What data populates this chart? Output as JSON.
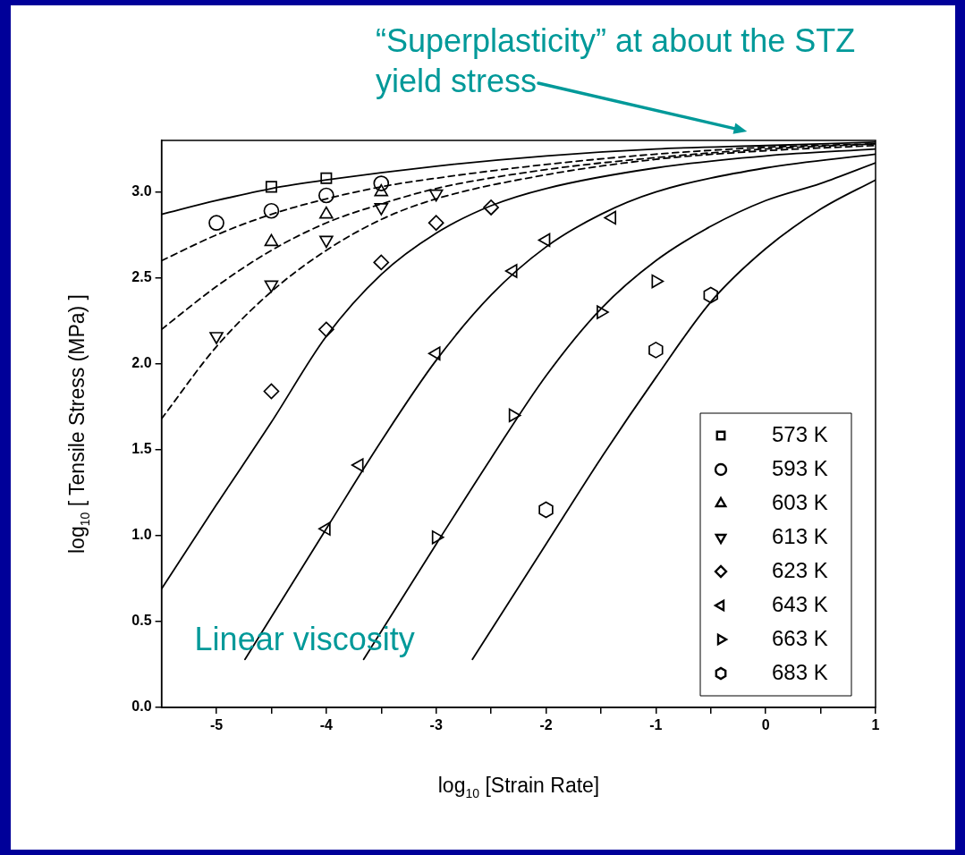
{
  "chart_data": {
    "type": "scatter",
    "xlabel": "log$_{10}$ [Strain Rate]",
    "ylabel": "log$_{10}$ [ Tensile Stress (MPa) ]",
    "xlim": [
      -5.5,
      1
    ],
    "xticks": [
      -5,
      {
        "value": -4.5,
        "label": null
      },
      -4,
      {
        "value": -3.5,
        "label": null
      },
      -3,
      {
        "value": -2.5,
        "label": null
      },
      -2,
      {
        "value": -1.5,
        "label": null
      },
      -1,
      {
        "value": -0.5,
        "label": null
      },
      0,
      {
        "value": 0.5,
        "label": null
      },
      1
    ],
    "ylim": [
      0,
      3.3
    ],
    "yticks": [
      {
        "value": 0,
        "label": "0.0"
      },
      0.5,
      {
        "value": 1,
        "label": "1.0"
      },
      1.5,
      {
        "value": 2,
        "label": "2.0"
      },
      2.5,
      {
        "value": 3,
        "label": "3.0"
      }
    ],
    "grid": false,
    "legend": "bottom right",
    "series": [
      {
        "name": "573 K",
        "marker": "square",
        "color": "#000000",
        "x": [
          -4.5,
          -4
        ],
        "values": [
          3.03,
          3.08
        ]
      },
      {
        "name": "593 K",
        "marker": "circle",
        "color": "#000000",
        "x": [
          -5,
          -4.5,
          -4,
          -3.5
        ],
        "values": [
          2.82,
          2.89,
          2.98,
          3.05
        ]
      },
      {
        "name": "603 K",
        "marker": "triangle",
        "color": "#000000",
        "x": [
          -4.5,
          -4,
          -3.5
        ],
        "values": [
          2.71,
          2.87,
          3.0
        ]
      },
      {
        "name": "613 K",
        "marker": "triangle-down",
        "color": "#000000",
        "x": [
          -5,
          -4.5,
          -4,
          -3.5,
          -3
        ],
        "values": [
          2.16,
          2.46,
          2.72,
          2.91,
          2.99
        ]
      },
      {
        "name": "623 K",
        "marker": "diamond",
        "color": "#000000",
        "x": [
          -4.5,
          -4,
          -3.5,
          -3,
          -2.5
        ],
        "values": [
          1.84,
          2.2,
          2.59,
          2.82,
          2.91
        ]
      },
      {
        "name": "643 K",
        "marker": "triangle-left",
        "color": "#000000",
        "x": [
          -4,
          -3.7,
          -3,
          -2.3,
          -2,
          -1.4
        ],
        "values": [
          1.04,
          1.41,
          2.06,
          2.54,
          2.72,
          2.85
        ]
      },
      {
        "name": "663 K",
        "marker": "triangle-right",
        "color": "#000000",
        "x": [
          -3,
          -2.3,
          -1.5,
          -1
        ],
        "values": [
          0.99,
          1.7,
          2.3,
          2.48
        ]
      },
      {
        "name": "683 K",
        "color": "#000000",
        "x": [
          -2,
          -1,
          -0.5
        ],
        "values": [
          1.15,
          2.08,
          2.4
        ]
      },
      {
        "type": "line",
        "line_style": "solid",
        "color": "#000000",
        "x": [
          -5.5,
          -5,
          -4.5,
          -4,
          -3,
          -2,
          -1,
          0,
          1
        ],
        "values": [
          2.87,
          2.95,
          3.02,
          3.07,
          3.15,
          3.21,
          3.25,
          3.27,
          3.29
        ]
      },
      {
        "type": "line",
        "line_style": "dashed",
        "color": "#000000",
        "x": [
          -5.5,
          -5,
          -4.5,
          -4,
          -3.5,
          -3,
          -2,
          -1,
          0,
          1
        ],
        "values": [
          2.6,
          2.75,
          2.87,
          2.96,
          3.03,
          3.08,
          3.16,
          3.22,
          3.26,
          3.28
        ]
      },
      {
        "type": "line",
        "line_style": "dashed",
        "color": "#000000",
        "x": [
          -5.5,
          -5,
          -4.5,
          -4,
          -3.5,
          -3,
          -2,
          -1,
          0,
          1
        ],
        "values": [
          2.2,
          2.45,
          2.66,
          2.82,
          2.93,
          3.02,
          3.13,
          3.2,
          3.25,
          3.28
        ]
      },
      {
        "type": "line",
        "line_style": "dashed",
        "color": "#000000",
        "x": [
          -5.5,
          -5,
          -4.5,
          -4,
          -3.5,
          -3,
          -2,
          -1,
          0,
          1
        ],
        "values": [
          1.68,
          2.1,
          2.42,
          2.66,
          2.84,
          2.96,
          3.1,
          3.19,
          3.24,
          3.27
        ]
      },
      {
        "type": "line",
        "line_style": "solid",
        "color": "#000000",
        "x": [
          -5.5,
          -5,
          -4.5,
          -4,
          -3.5,
          -3,
          -2.5,
          -2,
          -1,
          0,
          1
        ],
        "values": [
          0.69,
          1.18,
          1.66,
          2.16,
          2.52,
          2.76,
          2.92,
          3.02,
          3.14,
          3.21,
          3.25
        ]
      },
      {
        "type": "line",
        "line_style": "solid",
        "color": "#000000",
        "x": [
          -4.74,
          -4,
          -3.5,
          -3,
          -2.5,
          -2,
          -1.5,
          -1,
          0,
          1
        ],
        "values": [
          0.28,
          1.04,
          1.55,
          2.02,
          2.4,
          2.68,
          2.87,
          3.0,
          3.14,
          3.22
        ]
      },
      {
        "type": "line",
        "line_style": "solid",
        "color": "#000000",
        "x": [
          -3.66,
          -3,
          -2.5,
          -2,
          -1.5,
          -1,
          -0.5,
          0,
          0.5,
          1
        ],
        "values": [
          0.28,
          0.95,
          1.45,
          1.93,
          2.32,
          2.6,
          2.8,
          2.95,
          3.05,
          3.17
        ]
      },
      {
        "type": "line",
        "line_style": "solid",
        "color": "#000000",
        "x": [
          -2.67,
          -2,
          -1.5,
          -1,
          -0.5,
          0,
          0.5,
          1
        ],
        "values": [
          0.28,
          0.95,
          1.45,
          1.92,
          2.36,
          2.67,
          2.9,
          3.07
        ]
      }
    ],
    "annotations": [
      "“Superplasticity” at about the STZ yield stress",
      "Linear viscosity"
    ]
  }
}
